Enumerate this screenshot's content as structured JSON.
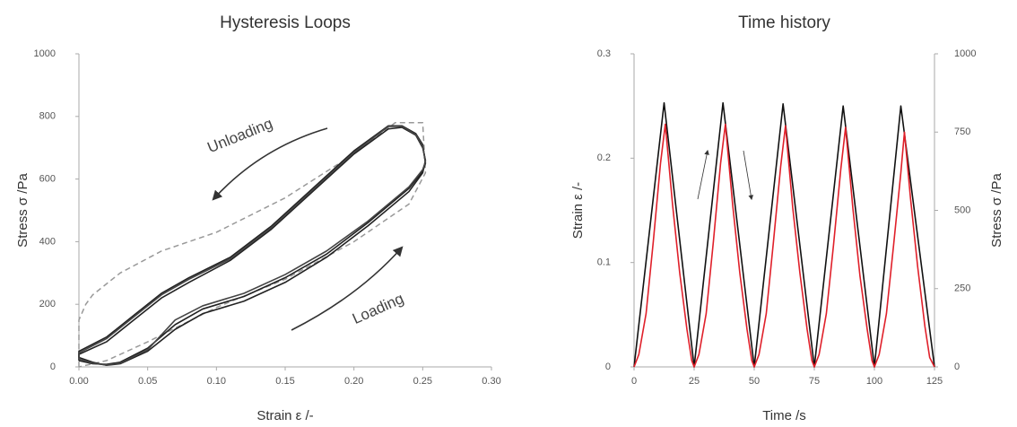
{
  "chart_data": [
    {
      "type": "line",
      "title": "Hysteresis Loops",
      "xlabel": "Strain ε /-",
      "ylabel": "Stress σ /Pa",
      "annotations": [
        "Unloading",
        "Loading"
      ],
      "xlim": [
        0,
        0.3
      ],
      "xticks": [
        {
          "value": 0,
          "label": "0.00"
        },
        {
          "value": 0.05,
          "label": "0.05"
        },
        {
          "value": 0.1,
          "label": "0.10"
        },
        {
          "value": 0.15,
          "label": "0.15"
        },
        {
          "value": 0.2,
          "label": "0.20"
        },
        {
          "value": 0.25,
          "label": "0.25"
        },
        {
          "value": 0.3,
          "label": "0.30"
        }
      ],
      "ylim": [
        0,
        1000
      ],
      "yticks": [
        0,
        200,
        400,
        600,
        800,
        1000
      ],
      "series": [
        {
          "color": "#999999",
          "dashed": true,
          "x": [
            0,
            0,
            0.005,
            0.01,
            0.03,
            0.06,
            0.1,
            0.15,
            0.2,
            0.23,
            0.25,
            0.252,
            0.24,
            0.2,
            0.15,
            0.1,
            0.05,
            0.02,
            0
          ],
          "values": [
            0,
            150,
            200,
            230,
            300,
            370,
            430,
            540,
            680,
            780,
            780,
            620,
            520,
            400,
            280,
            190,
            80,
            20,
            0
          ]
        },
        {
          "color": "#222222",
          "dashed": false,
          "x": [
            0,
            0.01,
            0.02,
            0.03,
            0.05,
            0.07,
            0.09,
            0.12,
            0.15,
            0.18,
            0.21,
            0.24,
            0.25,
            0.252,
            0.25,
            0.245,
            0.235,
            0.225,
            0.2,
            0.17,
            0.14,
            0.11,
            0.08,
            0.06,
            0.04,
            0.02,
            0,
            0
          ],
          "values": [
            30,
            15,
            5,
            10,
            50,
            120,
            170,
            210,
            270,
            350,
            450,
            560,
            620,
            660,
            700,
            740,
            765,
            760,
            680,
            560,
            440,
            340,
            270,
            220,
            150,
            80,
            40,
            30
          ]
        },
        {
          "color": "#222222",
          "dashed": false,
          "x": [
            0,
            0.01,
            0.02,
            0.03,
            0.05,
            0.07,
            0.09,
            0.12,
            0.15,
            0.18,
            0.21,
            0.24,
            0.25,
            0.252,
            0.25,
            0.245,
            0.235,
            0.225,
            0.2,
            0.17,
            0.14,
            0.11,
            0.08,
            0.06,
            0.04,
            0.02,
            0,
            0
          ],
          "values": [
            20,
            10,
            8,
            15,
            60,
            135,
            185,
            225,
            285,
            360,
            460,
            570,
            625,
            650,
            710,
            745,
            770,
            770,
            690,
            570,
            450,
            350,
            285,
            235,
            165,
            95,
            50,
            20
          ]
        },
        {
          "color": "#444444",
          "dashed": false,
          "x": [
            0,
            0.01,
            0.02,
            0.03,
            0.05,
            0.07,
            0.09,
            0.12,
            0.15,
            0.18,
            0.21,
            0.24,
            0.25,
            0.252,
            0.25,
            0.245,
            0.235,
            0.225,
            0.2,
            0.17,
            0.14,
            0.11,
            0.08,
            0.06,
            0.04,
            0.02,
            0,
            0
          ],
          "values": [
            25,
            12,
            6,
            12,
            55,
            150,
            195,
            235,
            295,
            370,
            465,
            575,
            630,
            655,
            705,
            742,
            768,
            768,
            685,
            565,
            445,
            345,
            280,
            230,
            160,
            90,
            45,
            25
          ]
        }
      ]
    },
    {
      "type": "line",
      "title": "Time history",
      "xlabel": "Time  /s",
      "ylabel": "Strain  ε /-",
      "y2label": "Stress  σ /Pa",
      "xlim": [
        0,
        125
      ],
      "xticks": [
        0,
        25,
        50,
        75,
        100,
        125
      ],
      "ylim": [
        0,
        0.3
      ],
      "yticks": [
        0,
        0.1,
        0.2,
        0.3
      ],
      "y2lim": [
        0,
        1000
      ],
      "y2ticks": [
        0,
        250,
        500,
        750,
        1000
      ],
      "series": [
        {
          "color": "#111111",
          "x": [
            0,
            12.5,
            25,
            37,
            50,
            62,
            75,
            87,
            100,
            111,
            125
          ],
          "values": [
            0,
            0.253,
            0,
            0.253,
            0,
            0.252,
            0,
            0.25,
            0,
            0.25,
            0
          ]
        },
        {
          "color": "#e0202a",
          "axis": "y2",
          "x": [
            0,
            2,
            5,
            8,
            11,
            13,
            16,
            19,
            22,
            24,
            25,
            27,
            30,
            33,
            36,
            38,
            41,
            44,
            47,
            49,
            50,
            52,
            55,
            58,
            61,
            63,
            66,
            69,
            72,
            74,
            75,
            77,
            80,
            83,
            86,
            88,
            91,
            94,
            97,
            99,
            100,
            102,
            105,
            108,
            111,
            112.5,
            115,
            118,
            121,
            123,
            125
          ],
          "values": [
            0,
            40,
            170,
            400,
            650,
            775,
            520,
            300,
            120,
            20,
            0,
            40,
            170,
            400,
            650,
            775,
            520,
            300,
            120,
            20,
            0,
            40,
            170,
            400,
            640,
            770,
            510,
            300,
            120,
            20,
            0,
            40,
            170,
            390,
            630,
            765,
            510,
            290,
            120,
            20,
            0,
            40,
            170,
            390,
            620,
            750,
            540,
            320,
            130,
            30,
            0
          ]
        }
      ]
    }
  ]
}
